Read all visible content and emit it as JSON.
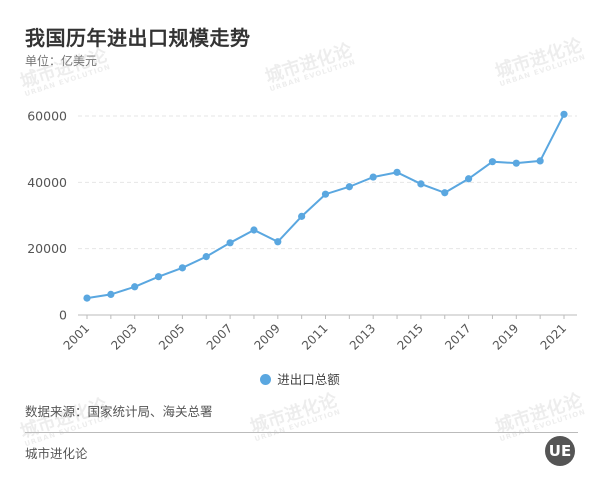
{
  "header": {
    "title": "我国历年进出口规模走势",
    "unit": "单位：亿美元"
  },
  "footer": {
    "source": "数据来源：国家统计局、海关总署",
    "brand": "城市进化论",
    "logo_text": "UE"
  },
  "watermark": {
    "cn": "城市进化论",
    "en": "URBAN EVOLUTION"
  },
  "chart_data": {
    "type": "line",
    "title": "我国历年进出口规模走势",
    "ylabel": "单位：亿美元",
    "x": [
      2001,
      2002,
      2003,
      2004,
      2005,
      2006,
      2007,
      2008,
      2009,
      2010,
      2011,
      2012,
      2013,
      2014,
      2015,
      2016,
      2017,
      2018,
      2019,
      2020,
      2021
    ],
    "x_tick_labels": [
      "2001",
      "2003",
      "2005",
      "2007",
      "2009",
      "2011",
      "2013",
      "2015",
      "2017",
      "2019",
      "2021"
    ],
    "y_tick_labels": [
      "0",
      "20000",
      "40000",
      "60000"
    ],
    "ylim": [
      0,
      60000
    ],
    "grid": "horizontal dashed",
    "legend": "bottom-center",
    "color": "#5aa7e0",
    "series": [
      {
        "name": "进出口总额",
        "values": [
          5097,
          6208,
          8510,
          11546,
          14219,
          17604,
          21766,
          25633,
          22075,
          29740,
          36419,
          38671,
          41590,
          43015,
          39530,
          36856,
          41071,
          46224,
          45779,
          46463,
          60514
        ]
      }
    ]
  }
}
